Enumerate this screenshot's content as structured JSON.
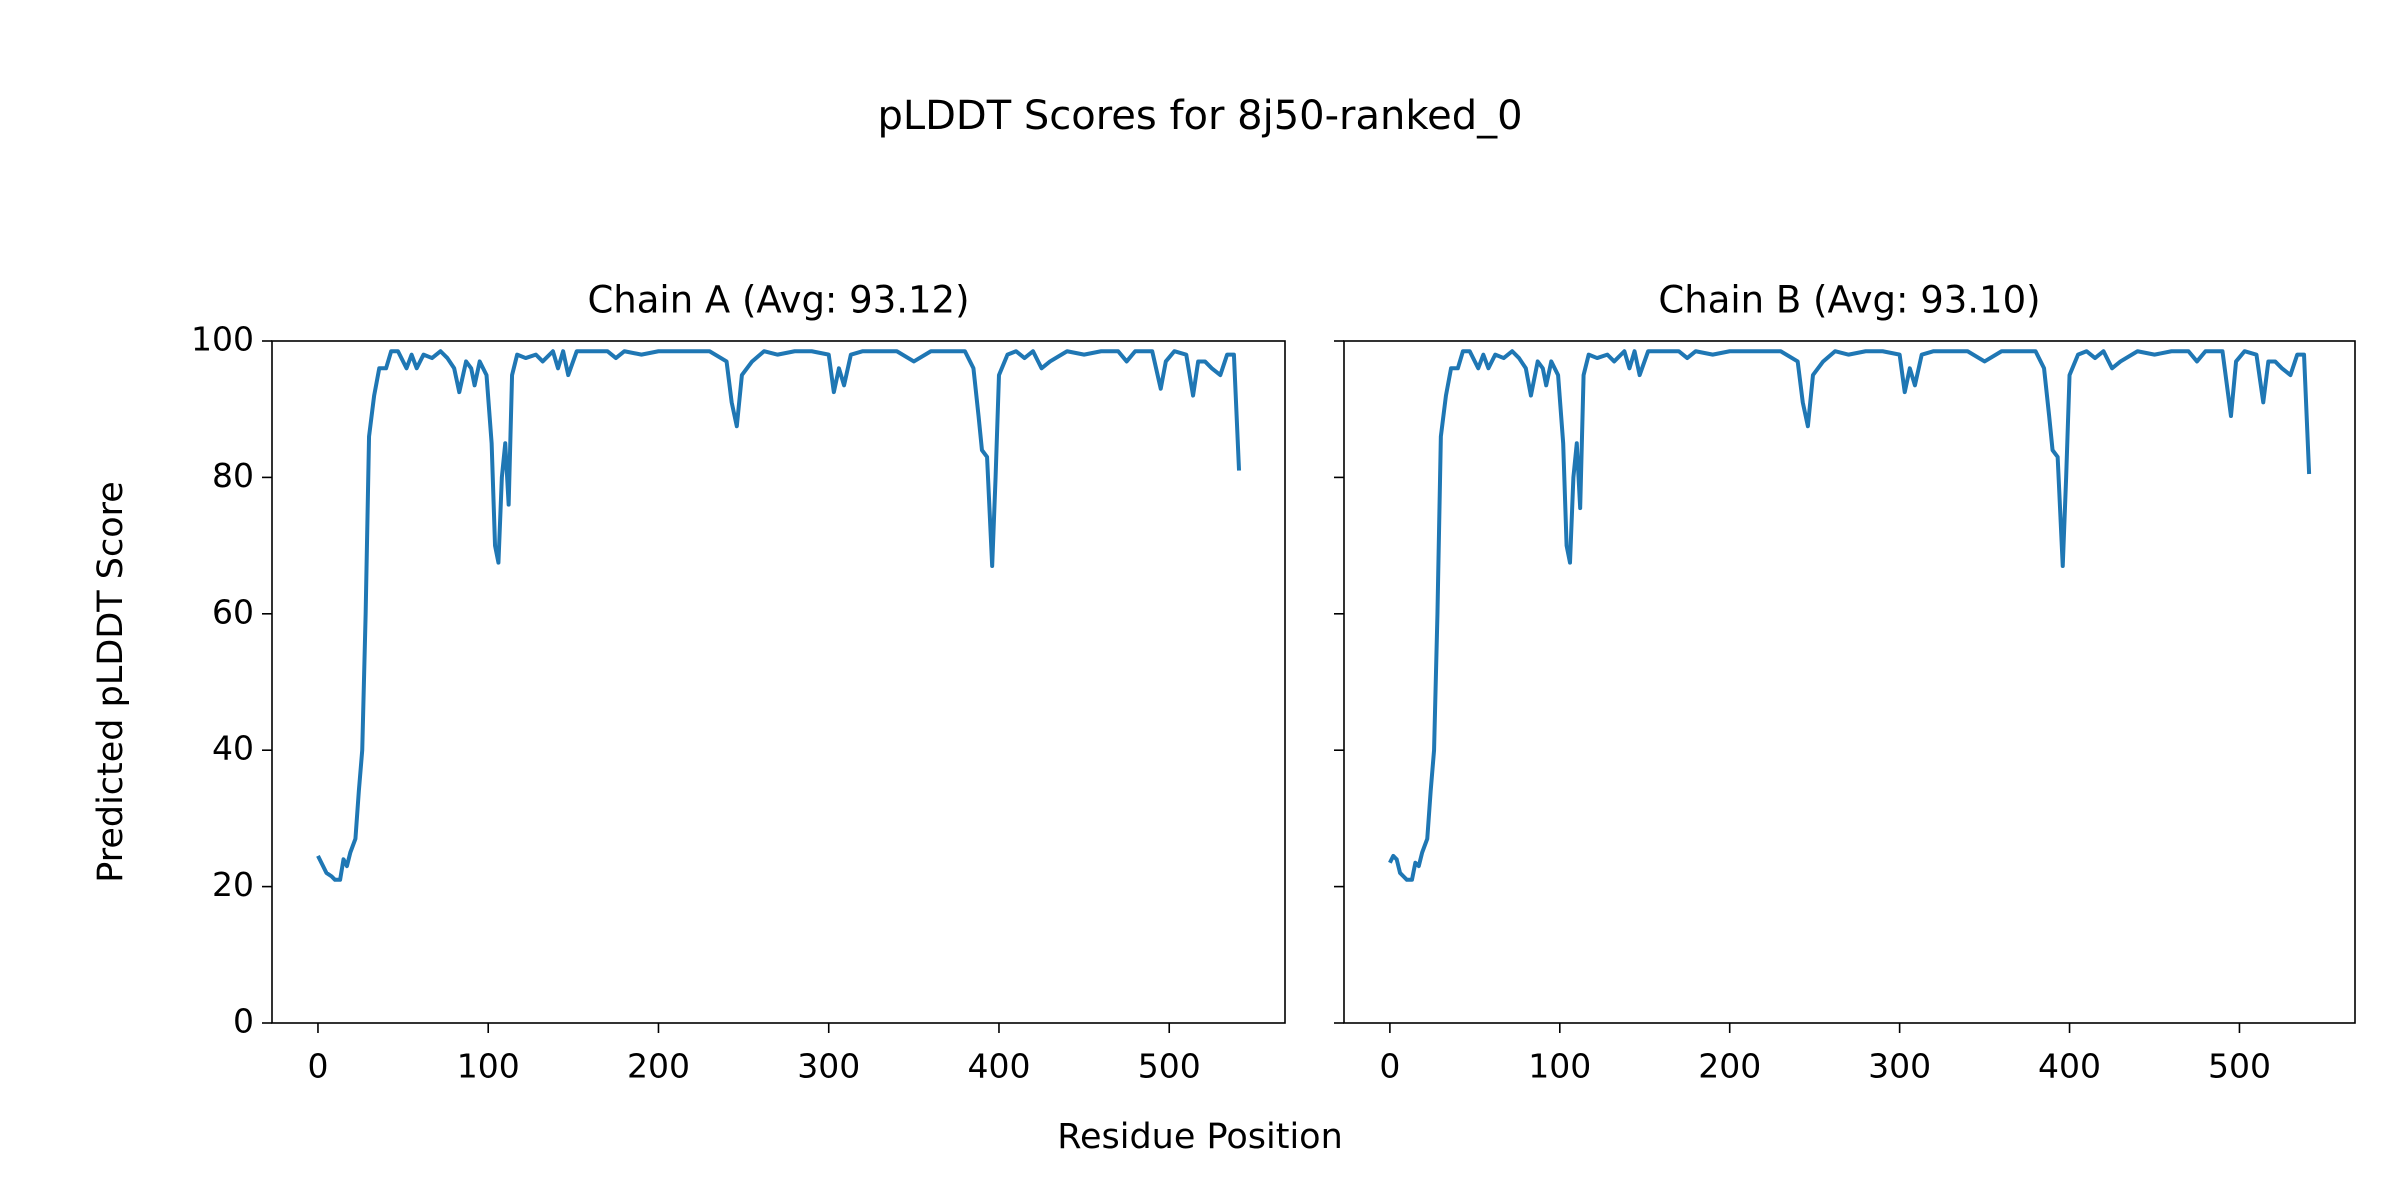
{
  "title": "pLDDT Scores for 8j50-ranked_0",
  "x_label": "Residue Position",
  "y_label": "Predicted pLDDT Score",
  "chart_data": [
    {
      "type": "line",
      "title": "Chain A (Avg: 93.12)",
      "color": "#1f77b4",
      "x": [
        0,
        3,
        5,
        8,
        10,
        13,
        15,
        17,
        19,
        22,
        24,
        26,
        28,
        30,
        33,
        36,
        40,
        43,
        47,
        52,
        55,
        58,
        62,
        67,
        72,
        76,
        80,
        83,
        87,
        90,
        92,
        95,
        99,
        102,
        104,
        106,
        108,
        110,
        112,
        114,
        117,
        122,
        128,
        132,
        138,
        141,
        144,
        147,
        152,
        160,
        170,
        175,
        180,
        190,
        200,
        210,
        220,
        230,
        240,
        243,
        246,
        249,
        255,
        262,
        270,
        280,
        290,
        300,
        303,
        306,
        309,
        313,
        320,
        330,
        340,
        350,
        360,
        370,
        380,
        385,
        388,
        390,
        393,
        396,
        398,
        400,
        405,
        410,
        415,
        420,
        425,
        430,
        440,
        450,
        460,
        470,
        475,
        480,
        490,
        495,
        498,
        503,
        510,
        514,
        517,
        521,
        525,
        530,
        534,
        538,
        541
      ],
      "values": [
        24.5,
        23,
        22,
        21.5,
        21,
        21,
        24,
        23,
        25,
        27,
        34,
        40,
        60,
        86,
        92,
        96,
        96,
        98.5,
        98.5,
        96,
        98,
        96,
        98,
        97.5,
        98.5,
        97.5,
        96,
        92.5,
        97,
        96,
        93.5,
        97,
        95,
        85,
        70,
        67.5,
        80,
        85,
        76,
        95,
        98,
        97.5,
        98,
        97,
        98.5,
        96,
        98.5,
        95,
        98.5,
        98.5,
        98.5,
        97.5,
        98.5,
        98,
        98.5,
        98.5,
        98.5,
        98.5,
        97,
        91,
        87.5,
        95,
        97,
        98.5,
        98,
        98.5,
        98.5,
        98,
        92.5,
        96,
        93.5,
        98,
        98.5,
        98.5,
        98.5,
        97,
        98.5,
        98.5,
        98.5,
        96,
        89,
        84,
        83,
        67,
        80,
        95,
        98,
        98.5,
        97.5,
        98.5,
        96,
        97,
        98.5,
        98,
        98.5,
        98.5,
        97,
        98.5,
        98.5,
        93,
        97,
        98.5,
        98,
        92,
        97,
        97,
        96,
        95,
        98,
        98,
        81
      ],
      "xlim": [
        -27,
        568
      ],
      "xticks": [
        0,
        100,
        200,
        300,
        400,
        500
      ],
      "ylim": [
        0,
        100
      ],
      "yticks": [
        0,
        20,
        40,
        60,
        80,
        100
      ]
    },
    {
      "type": "line",
      "title": "Chain B (Avg: 93.10)",
      "color": "#1f77b4",
      "sharey": true,
      "x": [
        0,
        2,
        4,
        6,
        8,
        10,
        13,
        15,
        17,
        19,
        22,
        24,
        26,
        28,
        30,
        33,
        36,
        40,
        43,
        47,
        52,
        55,
        58,
        62,
        67,
        72,
        76,
        80,
        83,
        87,
        90,
        92,
        95,
        99,
        102,
        104,
        106,
        108,
        110,
        112,
        114,
        117,
        122,
        128,
        132,
        138,
        141,
        144,
        147,
        152,
        160,
        170,
        175,
        180,
        190,
        200,
        210,
        220,
        230,
        240,
        243,
        246,
        249,
        255,
        262,
        270,
        280,
        290,
        300,
        303,
        306,
        309,
        313,
        320,
        330,
        340,
        350,
        360,
        370,
        380,
        385,
        388,
        390,
        393,
        396,
        398,
        400,
        405,
        410,
        415,
        420,
        425,
        430,
        440,
        450,
        460,
        470,
        475,
        480,
        490,
        495,
        498,
        503,
        510,
        514,
        517,
        521,
        525,
        530,
        534,
        538,
        541
      ],
      "values": [
        23.5,
        24.5,
        24,
        22,
        21.5,
        21,
        21,
        23.5,
        23,
        25,
        27,
        34,
        40,
        60,
        86,
        92,
        96,
        96,
        98.5,
        98.5,
        96,
        98,
        96,
        98,
        97.5,
        98.5,
        97.5,
        96,
        92,
        97,
        96,
        93.5,
        97,
        95,
        85,
        70,
        67.5,
        80,
        85,
        75.5,
        95,
        98,
        97.5,
        98,
        97,
        98.5,
        96,
        98.5,
        95,
        98.5,
        98.5,
        98.5,
        97.5,
        98.5,
        98,
        98.5,
        98.5,
        98.5,
        98.5,
        97,
        91,
        87.5,
        95,
        97,
        98.5,
        98,
        98.5,
        98.5,
        98,
        92.5,
        96,
        93.5,
        98,
        98.5,
        98.5,
        98.5,
        97,
        98.5,
        98.5,
        98.5,
        96,
        89,
        84,
        83,
        67,
        80,
        95,
        98,
        98.5,
        97.5,
        98.5,
        96,
        97,
        98.5,
        98,
        98.5,
        98.5,
        97,
        98.5,
        98.5,
        89,
        97,
        98.5,
        98,
        91,
        97,
        97,
        96,
        95,
        98,
        98,
        80.5
      ],
      "xlim": [
        -27,
        568
      ],
      "xticks": [
        0,
        100,
        200,
        300,
        400,
        500
      ]
    }
  ]
}
